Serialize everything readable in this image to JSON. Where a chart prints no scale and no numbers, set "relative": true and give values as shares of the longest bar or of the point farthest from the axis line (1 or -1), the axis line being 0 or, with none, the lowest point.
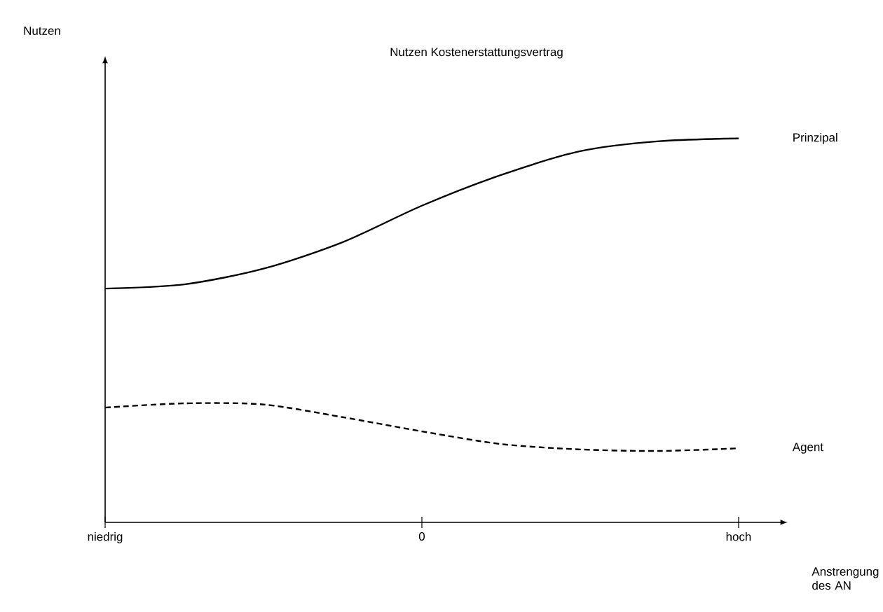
{
  "chart_data": {
    "type": "line",
    "title": "Nutzen Kostenerstattungsvertrag",
    "xlabel": "Anstrengung des AN",
    "annotations": [
      "Nutzen"
    ],
    "relative": true,
    "legend": false,
    "grid": false,
    "marker": "none",
    "categories": [
      "niedrig",
      null,
      null,
      null,
      "0",
      null,
      null,
      null,
      "hoch"
    ],
    "series": [
      {
        "name": "Prinzipal",
        "color": "#000000",
        "line_style": "solid",
        "values": [
          0.609,
          0.62,
          0.661,
          0.73,
          0.825,
          0.905,
          0.967,
          0.993,
          1
        ]
      },
      {
        "name": "Agent",
        "color": "#000000",
        "line_style": "dashed",
        "values": [
          0.299,
          0.31,
          0.307,
          0.274,
          0.237,
          0.204,
          0.19,
          0.186,
          0.193
        ]
      }
    ]
  }
}
